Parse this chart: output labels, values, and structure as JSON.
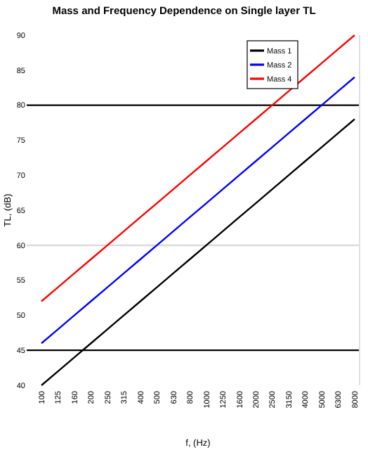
{
  "chart_data": {
    "type": "line",
    "title": "Mass and Frequency Dependence on Single layer TL",
    "xlabel": "f, (Hz)",
    "ylabel": "TL, (dB)",
    "categories": [
      "100",
      "125",
      "160",
      "200",
      "250",
      "315",
      "400",
      "500",
      "630",
      "800",
      "1000",
      "1250",
      "1600",
      "2000",
      "2500",
      "3150",
      "4000",
      "5000",
      "6300",
      "8000"
    ],
    "series": [
      {
        "name": "Mass 1",
        "color": "#000000",
        "values": [
          40,
          42,
          44,
          46,
          48,
          50,
          52,
          54,
          56,
          58,
          60,
          62,
          64,
          66,
          68,
          70,
          72,
          74,
          76,
          78
        ]
      },
      {
        "name": "Mass 2",
        "color": "#0000ff",
        "values": [
          46,
          48,
          50,
          52,
          54,
          56,
          58,
          60,
          62,
          64,
          66,
          68,
          70,
          72,
          74,
          76,
          78,
          80,
          82,
          84
        ]
      },
      {
        "name": "Mass 4",
        "color": "#ff0000",
        "values": [
          52,
          54,
          56,
          58,
          60,
          62,
          64,
          66,
          68,
          70,
          72,
          74,
          76,
          78,
          80,
          82,
          84,
          86,
          88,
          90
        ]
      }
    ],
    "ylim": [
      40,
      90
    ],
    "yticks": [
      40,
      45,
      50,
      55,
      60,
      65,
      70,
      75,
      80,
      85,
      90
    ],
    "legend": "top right",
    "ref_lines": [
      {
        "axis": "y",
        "value": 45,
        "color": "#000000"
      },
      {
        "axis": "y",
        "value": 60,
        "color": "#d9d9d9"
      },
      {
        "axis": "y",
        "value": 80,
        "color": "#000000"
      }
    ]
  }
}
